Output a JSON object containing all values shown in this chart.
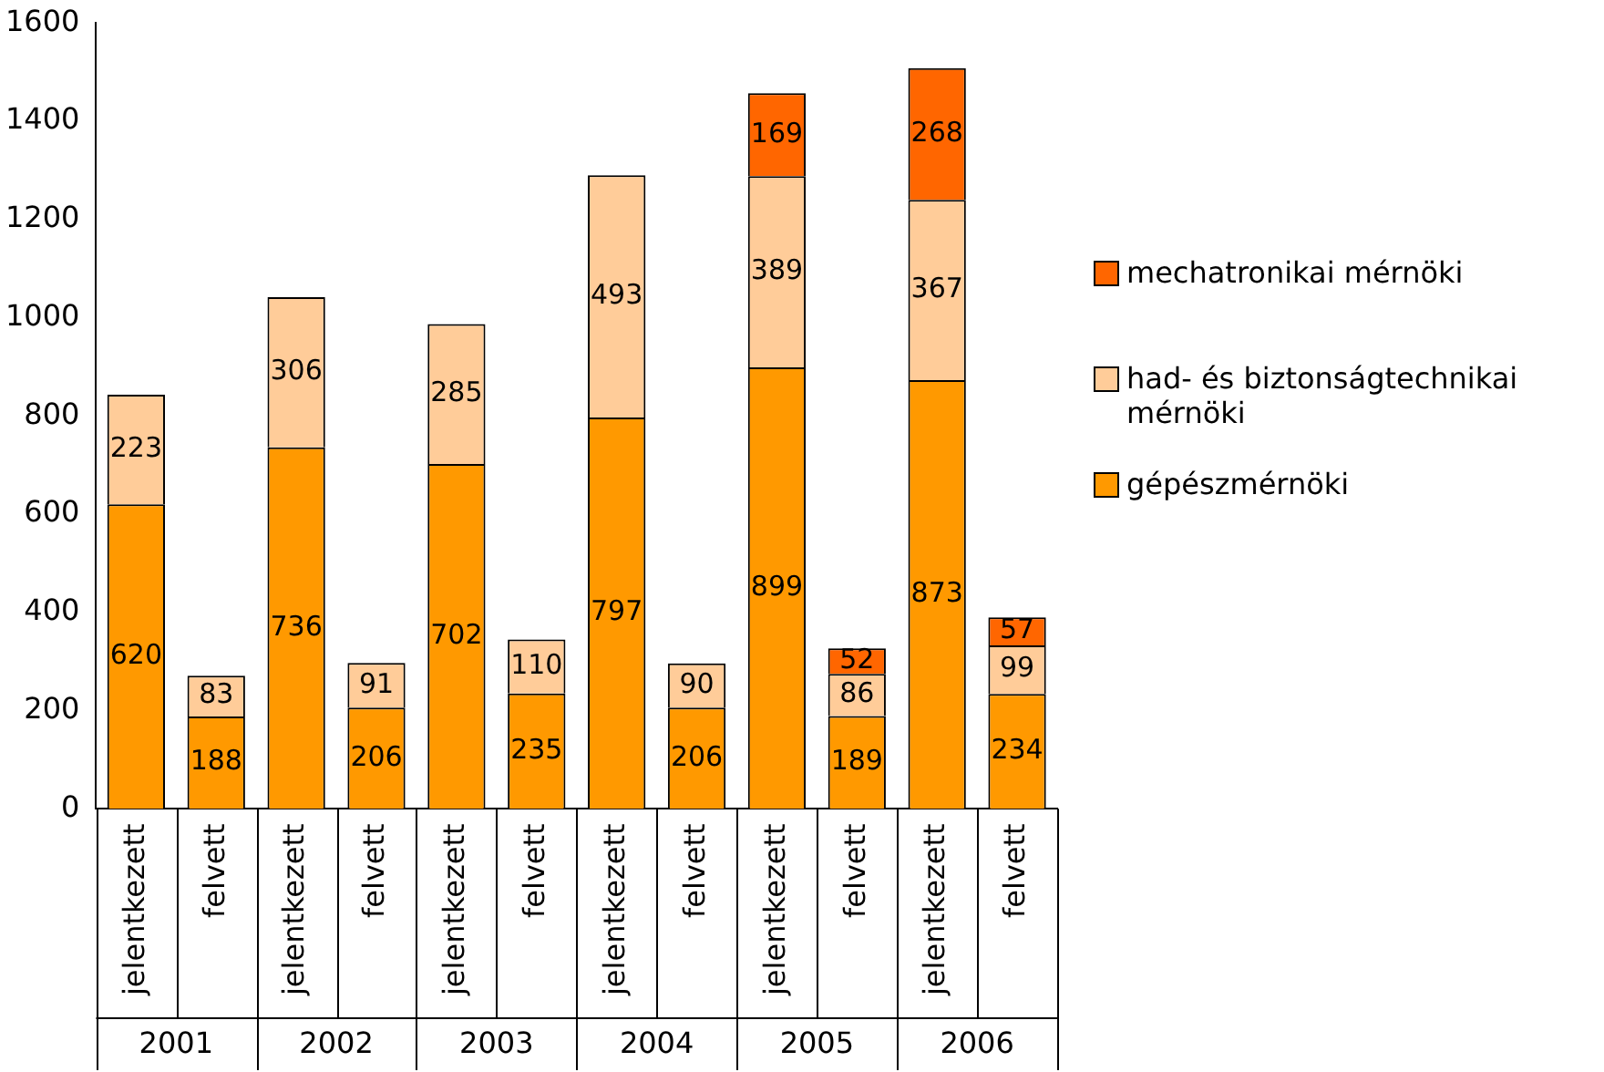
{
  "chart_data": {
    "type": "bar",
    "stacked": true,
    "categories": [
      "jelentkezett",
      "felvett",
      "jelentkezett",
      "felvett",
      "jelentkezett",
      "felvett",
      "jelentkezett",
      "felvett",
      "jelentkezett",
      "felvett",
      "jelentkezett",
      "felvett"
    ],
    "series": [
      {
        "name": "gépészmérnöki",
        "color": "#ff9900",
        "values": [
          620,
          188,
          736,
          206,
          702,
          235,
          797,
          206,
          899,
          189,
          873,
          234
        ]
      },
      {
        "name": "had- és biztonságtechnikai mérnöki",
        "color": "#ffcc99",
        "values": [
          223,
          83,
          306,
          91,
          285,
          110,
          493,
          90,
          389,
          86,
          367,
          99
        ]
      },
      {
        "name": "mechatronikai mérnöki",
        "color": "#ff6600",
        "values": [
          null,
          null,
          null,
          null,
          null,
          null,
          null,
          null,
          169,
          52,
          268,
          57
        ]
      }
    ],
    "ylim": [
      0,
      1600
    ],
    "yticks": [
      0,
      200,
      400,
      600,
      800,
      1000,
      1200,
      1400,
      1600
    ],
    "grid": false,
    "legend": "right",
    "data_labels": true,
    "annotations": [
      "2001",
      "2002",
      "2003",
      "2004",
      "2005",
      "2006"
    ]
  }
}
